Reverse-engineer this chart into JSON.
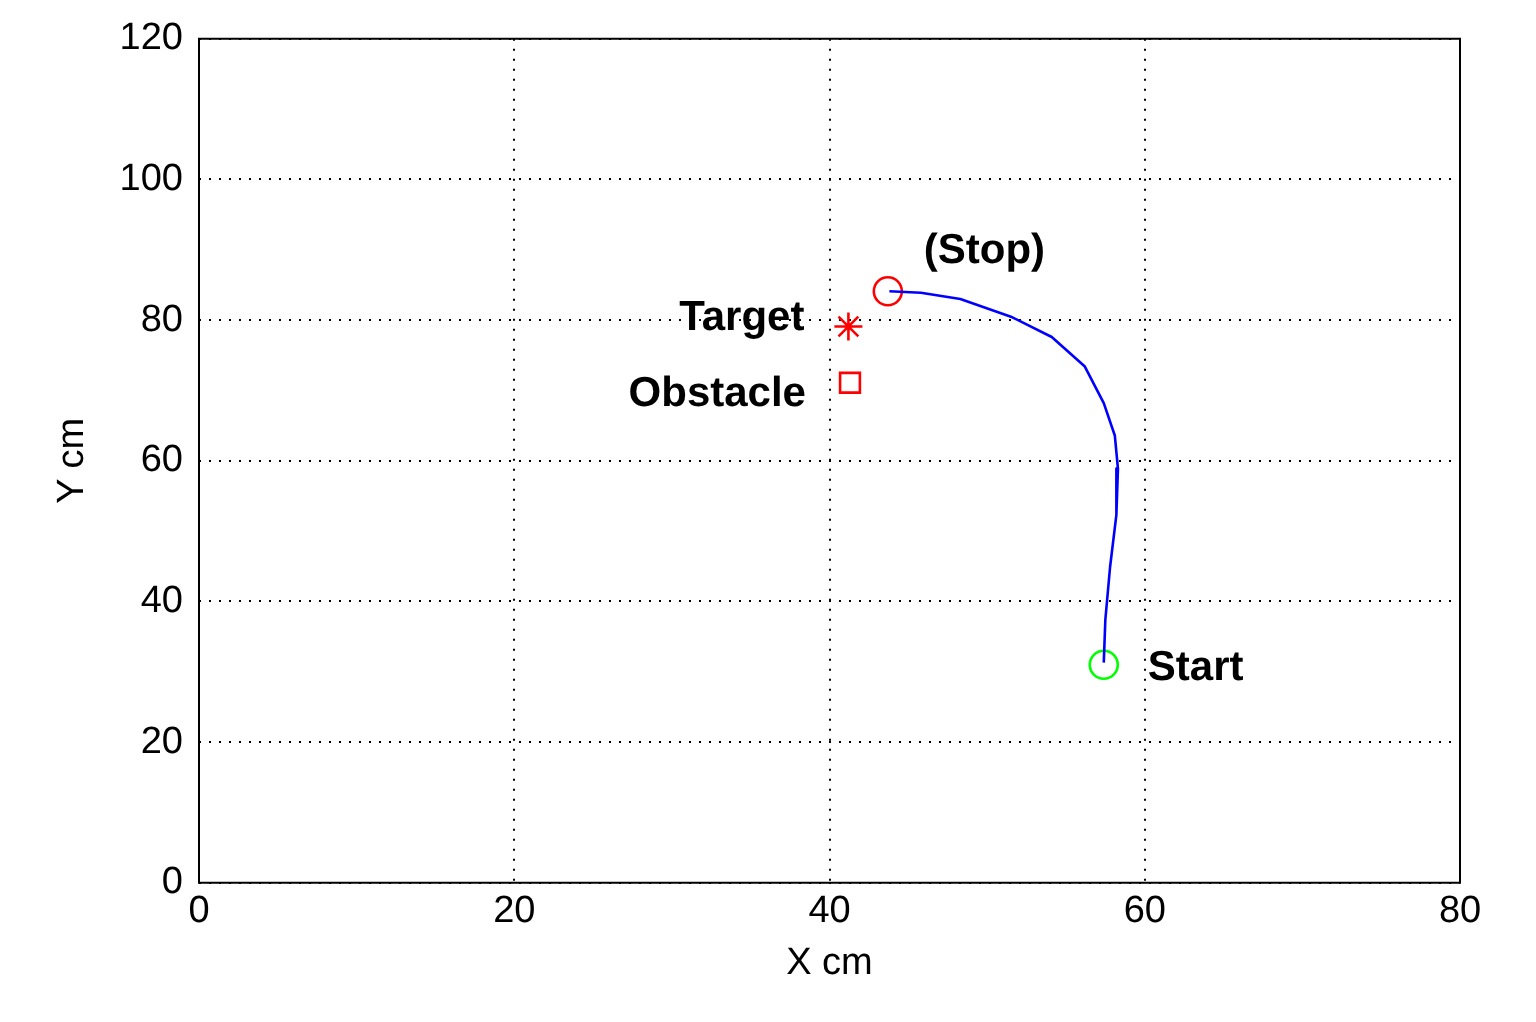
{
  "chart_data": {
    "type": "line",
    "xlabel": "X cm",
    "ylabel": "Y cm",
    "xlim": [
      0,
      80
    ],
    "xticks": [
      0,
      20,
      40,
      60,
      80
    ],
    "ylim": [
      0,
      120
    ],
    "yticks": [
      0,
      20,
      40,
      60,
      80,
      100,
      120
    ],
    "grid": true,
    "series": [
      {
        "color": "#0000ff",
        "marker": "none",
        "x": [
          43.8,
          45.8,
          48.3,
          51.6,
          54.1,
          56.2,
          57.4,
          58.1,
          58.3,
          58.2,
          57.8,
          57.5,
          57.4
        ],
        "values": [
          84.1,
          83.9,
          83.0,
          80.4,
          77.6,
          73.4,
          68.2,
          63.6,
          58.9,
          52.3,
          44.9,
          37.4,
          31.3
        ]
      },
      {
        "type": "scatter",
        "name": "(Stop)",
        "color": "#ff0000",
        "marker": "circle",
        "x": [
          43.7
        ],
        "values": [
          84.1
        ]
      },
      {
        "type": "scatter",
        "name": "Target",
        "color": "#ff0000",
        "marker": "cross",
        "x": [
          41.2
        ],
        "values": [
          79.1
        ]
      },
      {
        "type": "scatter",
        "name": "Obstacle",
        "color": "#ff0000",
        "marker": "square",
        "x": [
          41.3
        ],
        "values": [
          71.1
        ]
      },
      {
        "type": "scatter",
        "name": "Start",
        "color": "#00ff00",
        "marker": "circle",
        "x": [
          57.4
        ],
        "values": [
          31.0
        ]
      }
    ]
  }
}
